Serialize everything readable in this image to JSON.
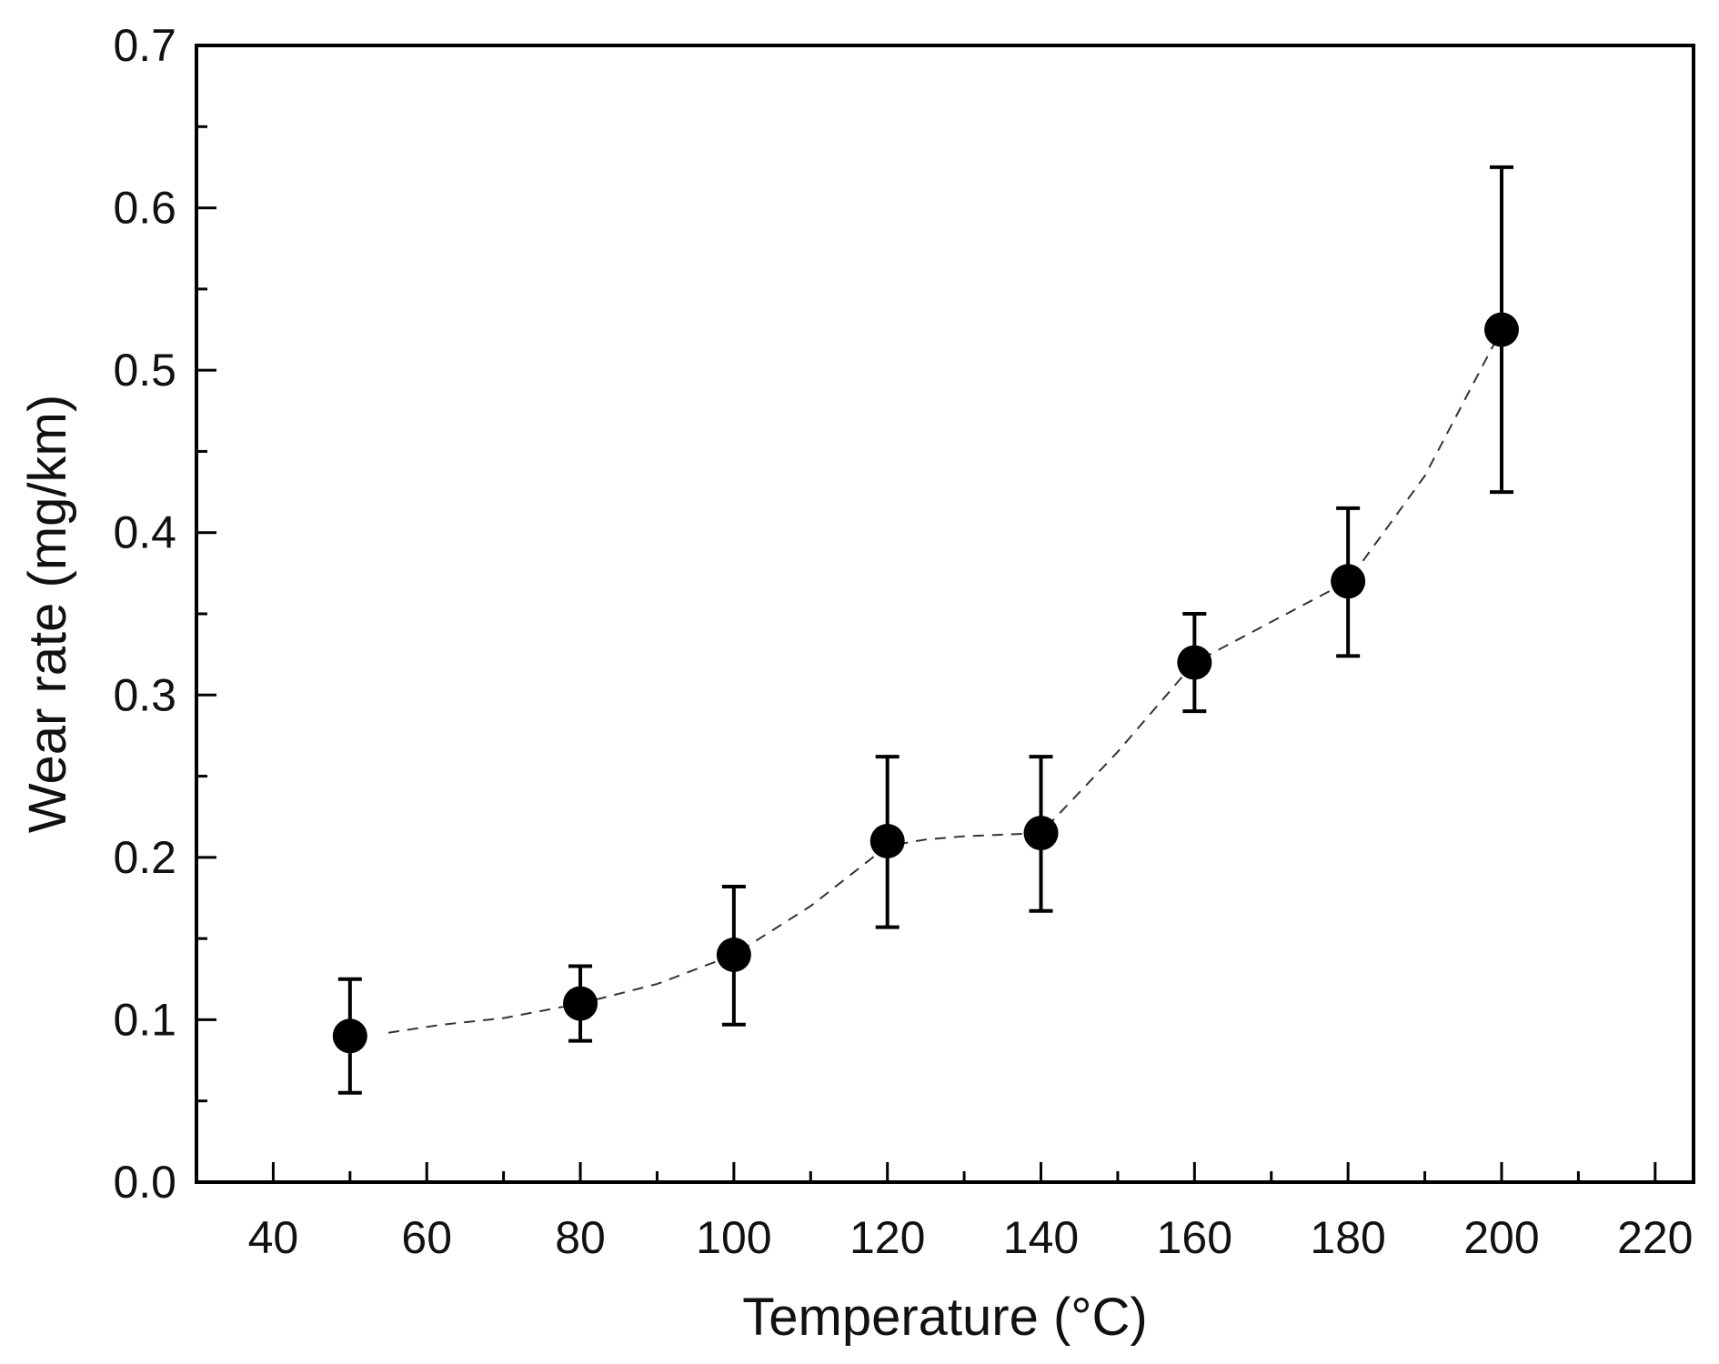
{
  "chart_data": {
    "type": "scatter",
    "title": "",
    "xlabel": "Temperature (°C)",
    "ylabel": "Wear rate (mg/km)",
    "xlim": [
      30,
      225
    ],
    "ylim": [
      0.0,
      0.7
    ],
    "xticks": [
      40,
      60,
      80,
      100,
      120,
      140,
      160,
      180,
      200,
      220
    ],
    "xtick_labels": [
      "40",
      "60",
      "80",
      "100",
      "120",
      "140",
      "160",
      "180",
      "200",
      "220"
    ],
    "yticks": [
      0.0,
      0.1,
      0.2,
      0.3,
      0.4,
      0.5,
      0.6,
      0.7
    ],
    "ytick_labels": [
      "0.0",
      "0.1",
      "0.2",
      "0.3",
      "0.4",
      "0.5",
      "0.6",
      "0.7"
    ],
    "x_minor_step": 10,
    "y_minor_step": 0.05,
    "grid": false,
    "legend": "none",
    "series": [
      {
        "name": "Wear rate",
        "marker": "filled-circle",
        "color": "#000000",
        "x": [
          50,
          80,
          100,
          120,
          140,
          160,
          180,
          200
        ],
        "y": [
          0.09,
          0.11,
          0.14,
          0.21,
          0.215,
          0.32,
          0.37,
          0.525
        ],
        "yerr_low": [
          0.055,
          0.087,
          0.097,
          0.157,
          0.167,
          0.29,
          0.324,
          0.425
        ],
        "yerr_high": [
          0.125,
          0.133,
          0.182,
          0.262,
          0.262,
          0.35,
          0.415,
          0.625
        ]
      }
    ],
    "trend_line": {
      "style": "dashed",
      "color": "#333333",
      "x": [
        55,
        62,
        70,
        80,
        90,
        100,
        110,
        120,
        125,
        130,
        140,
        150,
        160,
        170,
        180,
        190,
        200
      ],
      "y": [
        0.092,
        0.097,
        0.101,
        0.11,
        0.122,
        0.14,
        0.17,
        0.207,
        0.211,
        0.213,
        0.215,
        0.265,
        0.32,
        0.345,
        0.37,
        0.435,
        0.525
      ]
    }
  }
}
